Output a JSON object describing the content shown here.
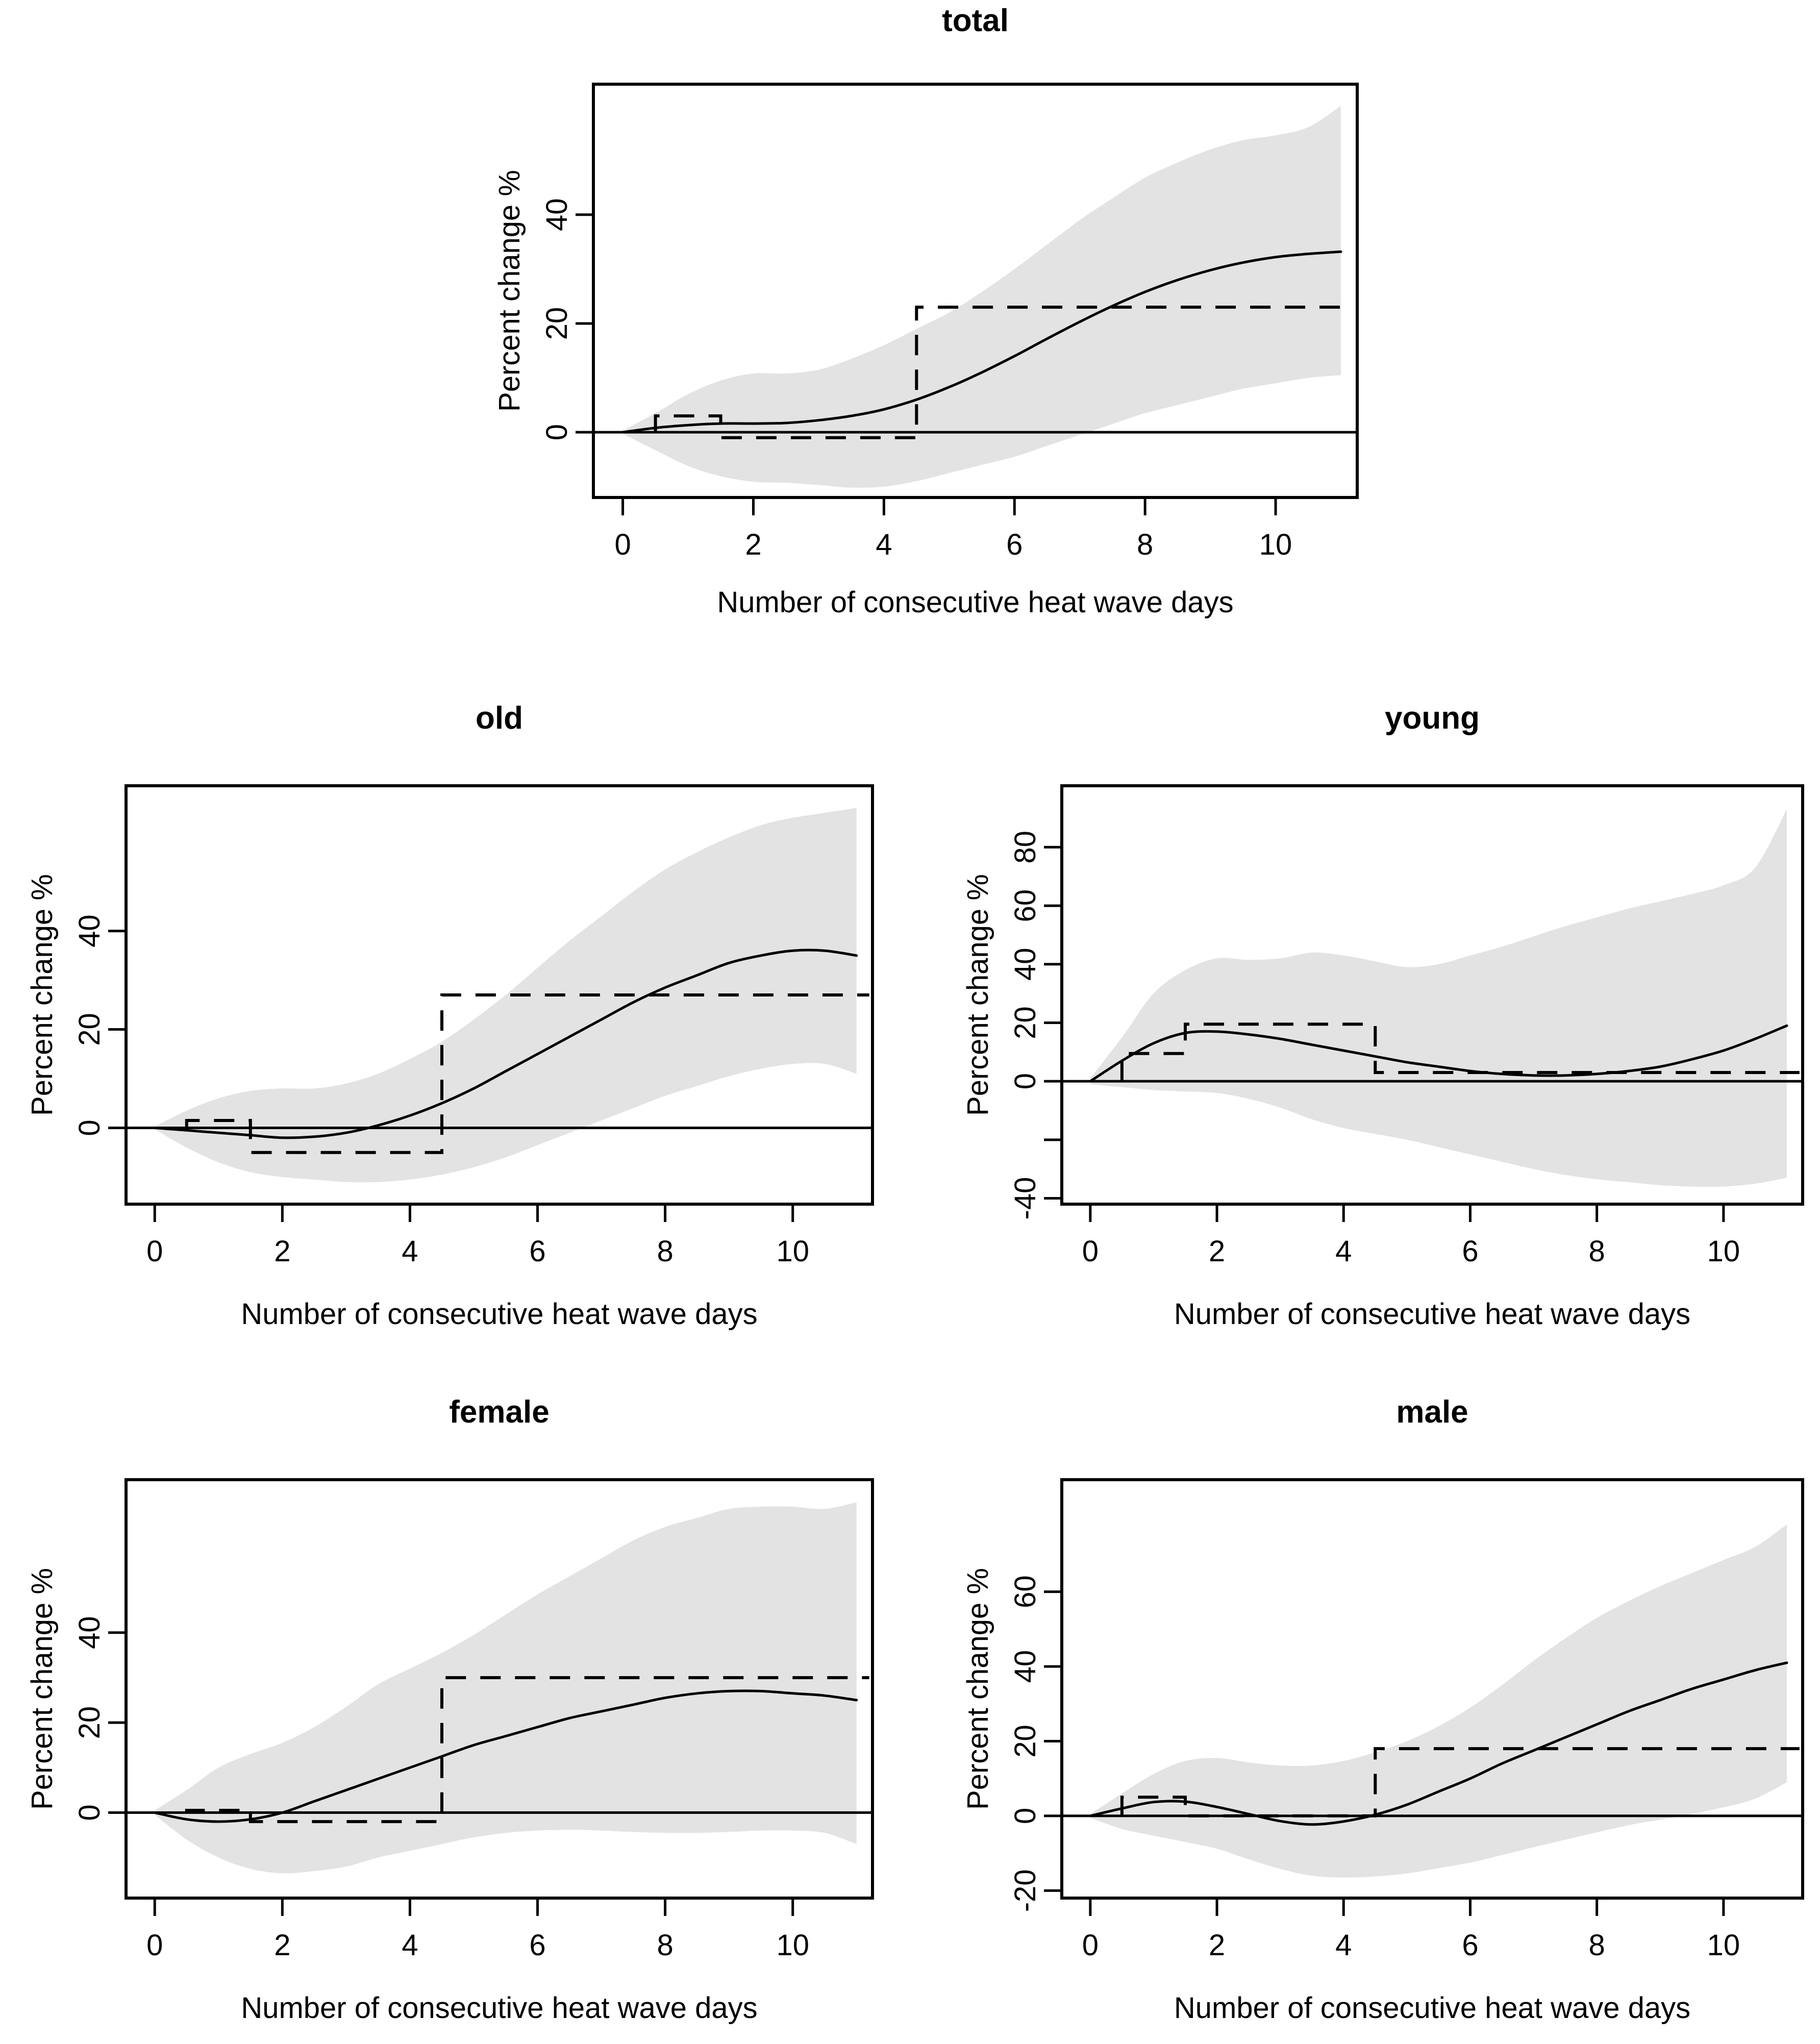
{
  "figure": {
    "background": "#ffffff",
    "text_color": "#000000",
    "band_color": "#e3e3e3",
    "line_color": "#000000",
    "xlabel": "Number of consecutive heat wave days",
    "ylabel": "Percent change %"
  },
  "chart_data": [
    {
      "type": "line",
      "title": "total",
      "xlabel": "Number of consecutive heat wave days",
      "ylabel": "Percent change %",
      "x": [
        0,
        0.5,
        1,
        1.5,
        2,
        2.5,
        3,
        3.5,
        4,
        4.5,
        5,
        5.5,
        6,
        6.5,
        7,
        7.5,
        8,
        8.5,
        9,
        9.5,
        10,
        10.5,
        11
      ],
      "curve": [
        0,
        0.8,
        1.3,
        1.6,
        1.6,
        1.7,
        2.2,
        3,
        4.2,
        6,
        8.3,
        11,
        14,
        17.2,
        20.3,
        23.2,
        25.8,
        28,
        29.8,
        31.2,
        32.2,
        32.8,
        33.2
      ],
      "band_upper": [
        0.3,
        3.5,
        7,
        9.5,
        10.8,
        10.8,
        11.5,
        13.5,
        16,
        19,
        22,
        25.8,
        30,
        34.5,
        39,
        43,
        46.8,
        49.6,
        52,
        53.7,
        54.6,
        56.1,
        60
      ],
      "band_lower": [
        -0.3,
        -3.3,
        -6.2,
        -8.1,
        -9.1,
        -9.3,
        -9.7,
        -10.2,
        -10,
        -9,
        -7.5,
        -6,
        -4.5,
        -2.5,
        -0.5,
        1.5,
        3.5,
        5,
        6.5,
        8,
        9,
        10,
        10.5
      ],
      "step": {
        "breaks": [
          0.5,
          1.5,
          4.5
        ],
        "values": [
          3,
          -1,
          23
        ],
        "end_x": 11.2
      },
      "zero_line": 0,
      "xlim": [
        -0.45,
        11.25
      ],
      "ylim": [
        -12,
        64
      ],
      "xticks": [
        0,
        2,
        4,
        6,
        8,
        10
      ],
      "yticks": [
        {
          "v": 0,
          "label": "0"
        },
        {
          "v": 20,
          "label": "20"
        },
        {
          "v": 40,
          "label": "40"
        }
      ],
      "grid": false,
      "legend": "none"
    },
    {
      "type": "line",
      "title": "old",
      "xlabel": "Number of consecutive heat wave days",
      "ylabel": "Percent change %",
      "x": [
        0,
        0.5,
        1,
        1.5,
        2,
        2.5,
        3,
        3.5,
        4,
        4.5,
        5,
        5.5,
        6,
        6.5,
        7,
        7.5,
        8,
        8.5,
        9,
        9.5,
        10,
        10.5,
        11
      ],
      "curve": [
        0,
        -0.5,
        -1,
        -1.5,
        -2,
        -1.8,
        -1,
        0.5,
        2.5,
        5,
        8,
        11.5,
        15,
        18.5,
        22,
        25.5,
        28.5,
        31,
        33.5,
        35,
        36,
        36,
        35
      ],
      "band_upper": [
        0.3,
        3.5,
        6,
        7.5,
        8,
        8,
        9,
        11,
        14,
        17.5,
        22,
        27,
        32.5,
        38,
        43,
        48,
        52.5,
        56,
        59,
        61.5,
        63,
        64,
        65
      ],
      "band_lower": [
        -0.3,
        -4,
        -7,
        -9,
        -10,
        -10.5,
        -11,
        -11,
        -10.5,
        -9.5,
        -8,
        -6,
        -3.5,
        -1,
        1.5,
        4,
        6.5,
        8.5,
        10.5,
        12,
        13,
        13,
        11
      ],
      "step": {
        "breaks": [
          0.5,
          1.5,
          4.5
        ],
        "values": [
          1.5,
          -5,
          27
        ],
        "end_x": 11.2
      },
      "zero_line": 0,
      "xlim": [
        -0.45,
        11.25
      ],
      "ylim": [
        -15.5,
        69.5
      ],
      "xticks": [
        0,
        2,
        4,
        6,
        8,
        10
      ],
      "yticks": [
        {
          "v": 0,
          "label": "0"
        },
        {
          "v": 20,
          "label": "20"
        },
        {
          "v": 40,
          "label": "40"
        }
      ],
      "grid": false,
      "legend": "none"
    },
    {
      "type": "line",
      "title": "young",
      "xlabel": "Number of consecutive heat wave days",
      "ylabel": "Percent change %",
      "x": [
        0,
        0.5,
        1,
        1.5,
        2,
        2.5,
        3,
        3.5,
        4,
        4.5,
        5,
        5.5,
        6,
        6.5,
        7,
        7.5,
        8,
        8.5,
        9,
        9.5,
        10,
        10.5,
        11
      ],
      "curve": [
        0,
        7,
        13,
        16.5,
        17,
        16,
        14.5,
        12.5,
        10.5,
        8.5,
        6.5,
        5,
        3.5,
        2.5,
        2,
        2,
        2.5,
        3.5,
        5,
        7.5,
        10.5,
        14.5,
        19
      ],
      "band_upper": [
        1,
        15,
        30,
        38,
        42,
        41.5,
        42,
        44,
        43,
        41,
        39,
        40,
        43,
        46,
        49.5,
        53,
        56,
        59,
        61.5,
        64,
        67,
        73,
        93
      ],
      "band_lower": [
        -1,
        -2,
        -3,
        -3.5,
        -4,
        -6,
        -9,
        -13,
        -16,
        -18,
        -20,
        -22.5,
        -25,
        -27.5,
        -30,
        -32,
        -33.5,
        -34.5,
        -35.5,
        -36,
        -36,
        -35,
        -33
      ],
      "step": {
        "breaks": [
          0.5,
          1.5,
          4.5
        ],
        "values": [
          9.5,
          19.5,
          3
        ],
        "end_x": 11.2
      },
      "zero_line": 0,
      "xlim": [
        -0.45,
        11.25
      ],
      "ylim": [
        -42,
        101
      ],
      "xticks": [
        0,
        2,
        4,
        6,
        8,
        10
      ],
      "yticks": [
        {
          "v": -40,
          "label": "-40"
        },
        {
          "v": -20,
          "label": ""
        },
        {
          "v": 0,
          "label": "0"
        },
        {
          "v": 20,
          "label": "20"
        },
        {
          "v": 40,
          "label": "40"
        },
        {
          "v": 60,
          "label": "60"
        },
        {
          "v": 80,
          "label": "80"
        }
      ],
      "grid": false,
      "legend": "none"
    },
    {
      "type": "line",
      "title": "female",
      "xlabel": "Number of consecutive heat wave days",
      "ylabel": "Percent change %",
      "x": [
        0,
        0.5,
        1,
        1.5,
        2,
        2.5,
        3,
        3.5,
        4,
        4.5,
        5,
        5.5,
        6,
        6.5,
        7,
        7.5,
        8,
        8.5,
        9,
        9.5,
        10,
        10.5,
        11
      ],
      "curve": [
        0,
        -1.5,
        -2,
        -1.5,
        0,
        2.5,
        5,
        7.5,
        10,
        12.5,
        15,
        17,
        19,
        21,
        22.5,
        24,
        25.5,
        26.5,
        27,
        27,
        26.5,
        26,
        25
      ],
      "band_upper": [
        0.5,
        5,
        10,
        13,
        15.5,
        19,
        23.5,
        28.5,
        32,
        35.5,
        39.5,
        44,
        48.5,
        52.5,
        56.5,
        60.5,
        63.5,
        65.5,
        67.5,
        68,
        68,
        67.5,
        69
      ],
      "band_lower": [
        -0.5,
        -6,
        -10,
        -12.5,
        -13.5,
        -13,
        -12,
        -10,
        -8.5,
        -7,
        -5.5,
        -4.5,
        -4,
        -3.8,
        -4,
        -4.3,
        -4.5,
        -4.5,
        -4.3,
        -4,
        -4,
        -4.5,
        -7
      ],
      "step": {
        "breaks": [
          0.5,
          1.5,
          4.5
        ],
        "values": [
          0.5,
          -2,
          30
        ],
        "end_x": 11.2
      },
      "zero_line": 0,
      "xlim": [
        -0.45,
        11.25
      ],
      "ylim": [
        -19,
        74
      ],
      "xticks": [
        0,
        2,
        4,
        6,
        8,
        10
      ],
      "yticks": [
        {
          "v": 0,
          "label": "0"
        },
        {
          "v": 20,
          "label": "20"
        },
        {
          "v": 40,
          "label": "40"
        }
      ],
      "grid": false,
      "legend": "none"
    },
    {
      "type": "line",
      "title": "male",
      "xlabel": "Number of consecutive heat wave days",
      "ylabel": "Percent change %",
      "x": [
        0,
        0.5,
        1,
        1.5,
        2,
        2.5,
        3,
        3.5,
        4,
        4.5,
        5,
        5.5,
        6,
        6.5,
        7,
        7.5,
        8,
        8.5,
        9,
        9.5,
        10,
        10.5,
        11
      ],
      "curve": [
        0,
        2,
        3.7,
        3.8,
        2.4,
        0.5,
        -1.4,
        -2.3,
        -1.5,
        0.3,
        3,
        6.5,
        10,
        14,
        17.5,
        21,
        24.5,
        28,
        31,
        34,
        36.5,
        39,
        41
      ],
      "band_upper": [
        0.5,
        6,
        11.2,
        14.7,
        15.5,
        14.3,
        13.5,
        13.5,
        14.7,
        17,
        20,
        24,
        29,
        35,
        41.5,
        47.5,
        53,
        57.5,
        61.5,
        65,
        68.5,
        72,
        78
      ],
      "band_lower": [
        -0.5,
        -3.5,
        -5.3,
        -7,
        -8.8,
        -11.6,
        -14.2,
        -16,
        -16.5,
        -16.2,
        -15.4,
        -14,
        -12.5,
        -10.5,
        -8.4,
        -6.4,
        -4.4,
        -2.5,
        -1,
        0.5,
        2.3,
        4.6,
        9
      ],
      "step": {
        "breaks": [
          0.5,
          1.5,
          4.5
        ],
        "values": [
          5,
          0,
          18
        ],
        "end_x": 11.2
      },
      "zero_line": 0,
      "xlim": [
        -0.45,
        11.25
      ],
      "ylim": [
        -22,
        90
      ],
      "xticks": [
        0,
        2,
        4,
        6,
        8,
        10
      ],
      "yticks": [
        {
          "v": -20,
          "label": "-20"
        },
        {
          "v": 0,
          "label": "0"
        },
        {
          "v": 20,
          "label": "20"
        },
        {
          "v": 40,
          "label": "40"
        },
        {
          "v": 60,
          "label": "60"
        }
      ],
      "grid": false,
      "legend": "none"
    }
  ]
}
